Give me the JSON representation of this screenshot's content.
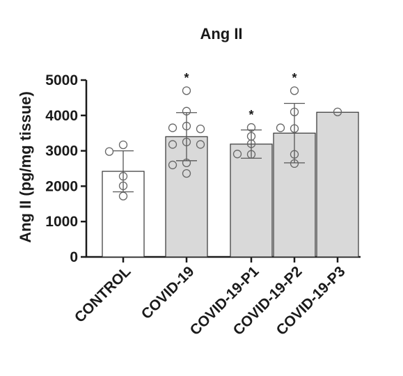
{
  "chart_data": {
    "type": "bar",
    "title": "Ang II",
    "ylabel": "Ang II (pg/mg tissue)",
    "xlabel": "",
    "ylim": [
      0,
      5000
    ],
    "yticks": [
      0,
      1000,
      2000,
      3000,
      4000,
      5000
    ],
    "categories": [
      "CONTROL",
      "COVID-19",
      "COVID-19-P1",
      "COVID-19-P2",
      "COVID-19-P3"
    ],
    "values": [
      2420,
      3400,
      3190,
      3500,
      4090
    ],
    "error_sd": [
      580,
      680,
      400,
      840,
      0
    ],
    "points": [
      [
        3170,
        2980,
        2280,
        2010,
        1720
      ],
      [
        4700,
        4120,
        3700,
        3650,
        3620,
        3250,
        3180,
        3180,
        2660,
        2600,
        2360
      ],
      [
        3660,
        3410,
        3200,
        2900,
        2910
      ],
      [
        4700,
        4100,
        3630,
        3650,
        2900,
        2640
      ],
      [
        4100
      ]
    ],
    "significance": [
      "",
      "*",
      "*",
      "*",
      ""
    ],
    "bar_colors": [
      "#ffffff",
      "#d9d9d9",
      "#d9d9d9",
      "#d9d9d9",
      "#d9d9d9"
    ],
    "grid": false,
    "legend": "none"
  }
}
